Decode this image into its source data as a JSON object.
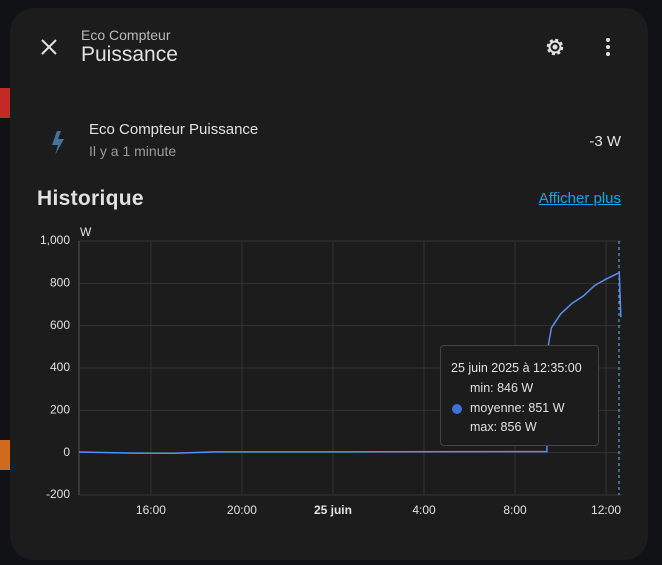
{
  "dialog": {
    "subtitle": "Eco Compteur",
    "title": "Puissance"
  },
  "entity": {
    "name": "Eco Compteur Puissance",
    "last_changed": "Il y a 1 minute",
    "state": "-3 W"
  },
  "history": {
    "heading": "Historique",
    "more_link": "Afficher plus"
  },
  "tooltip": {
    "time": "25 juin 2025 à 12:35:00",
    "min": "min: 846 W",
    "mean": "moyenne: 851 W",
    "max": "max: 856 W"
  },
  "chart_data": {
    "type": "line",
    "y_unit": "W",
    "xlim": [
      12.84,
      36.7
    ],
    "xticks": [
      {
        "value": 16,
        "label": "16:00"
      },
      {
        "value": 20,
        "label": "20:00"
      },
      {
        "value": 24,
        "label": "25 juin"
      },
      {
        "value": 28,
        "label": "4:00"
      },
      {
        "value": 32,
        "label": "8:00"
      },
      {
        "value": 36,
        "label": "12:00"
      }
    ],
    "ylim": [
      -200,
      1000
    ],
    "yticks": [
      -200,
      0,
      200,
      400,
      600,
      800,
      {
        "value": 1000,
        "label": "1,000"
      }
    ],
    "grid": true,
    "series": [
      {
        "name": "Eco Compteur Puissance",
        "color": "#5b8def",
        "x": [
          12.84,
          15.1,
          17.0,
          18.8,
          25,
          33.4,
          33.45,
          33.6,
          34.0,
          34.5,
          35.0,
          35.5,
          36.0,
          36.5,
          36.58,
          36.65
        ],
        "values": [
          3,
          -2,
          -3,
          4,
          4,
          5,
          500,
          590,
          655,
          705,
          740,
          790,
          820,
          846,
          851,
          640
        ]
      }
    ]
  }
}
